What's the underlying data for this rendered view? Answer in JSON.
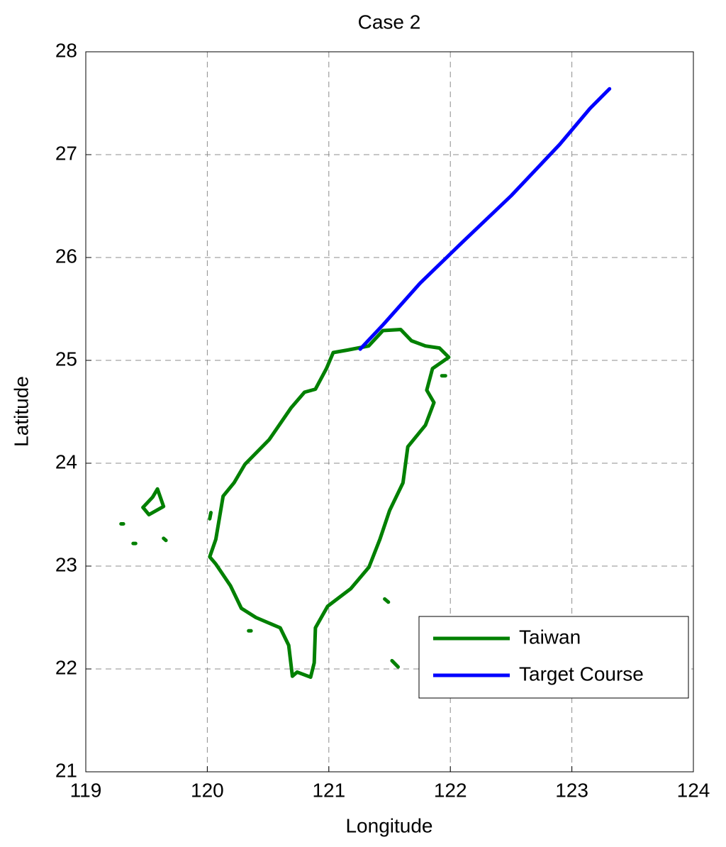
{
  "chart_data": {
    "type": "line",
    "title": "Case 2",
    "x_label": "Longitude",
    "y_label": "Latitude",
    "xlim": [
      119,
      124
    ],
    "xticks": [
      119,
      120,
      121,
      122,
      123,
      124
    ],
    "ylim": [
      21,
      28
    ],
    "yticks": [
      21,
      22,
      23,
      24,
      25,
      26,
      27,
      28
    ],
    "grid": true,
    "legend": "lower right",
    "series": [
      {
        "name": "Taiwan",
        "color": "#008000",
        "x": [
          121.036,
          121.153,
          121.328,
          121.445,
          121.591,
          121.68,
          121.795,
          121.911,
          121.987,
          121.853,
          121.806,
          121.865,
          121.795,
          121.65,
          121.61,
          121.5,
          121.42,
          121.33,
          121.18,
          120.99,
          120.89,
          120.88,
          120.85,
          120.74,
          120.7,
          120.67,
          120.6,
          120.4,
          120.28,
          120.19,
          120.07,
          120.02,
          120.07,
          120.13,
          120.22,
          120.31,
          120.51,
          120.69,
          120.8,
          120.89,
          120.98,
          121.036,
          null,
          119.47,
          119.55,
          119.59,
          119.64,
          119.52,
          119.47,
          null,
          119.29,
          119.31,
          null,
          119.39,
          119.41,
          null,
          119.64,
          119.66,
          null,
          120.02,
          120.03,
          null,
          120.34,
          120.36,
          null,
          121.46,
          121.49,
          null,
          121.52,
          121.57,
          null,
          121.93,
          121.96
        ],
        "values": [
          25.076,
          25.1,
          25.14,
          25.29,
          25.3,
          25.19,
          25.14,
          25.12,
          25.03,
          24.92,
          24.71,
          24.59,
          24.37,
          24.16,
          23.81,
          23.54,
          23.26,
          22.99,
          22.78,
          22.61,
          22.4,
          22.06,
          21.92,
          21.97,
          21.93,
          22.23,
          22.4,
          22.5,
          22.59,
          22.81,
          23.02,
          23.09,
          23.26,
          23.68,
          23.81,
          23.99,
          24.23,
          24.54,
          24.69,
          24.72,
          24.92,
          25.076,
          null,
          23.57,
          23.67,
          23.75,
          23.58,
          23.5,
          23.57,
          null,
          23.41,
          23.41,
          null,
          23.22,
          23.22,
          null,
          23.27,
          23.25,
          null,
          23.46,
          23.52,
          null,
          22.37,
          22.37,
          null,
          22.68,
          22.65,
          null,
          22.08,
          22.02,
          null,
          24.85,
          24.85
        ]
      },
      {
        "name": "Target Course",
        "color": "#0000ff",
        "x": [
          121.258,
          121.45,
          121.75,
          122.1,
          122.5,
          122.9,
          123.15,
          123.31
        ],
        "values": [
          25.11,
          25.35,
          25.75,
          26.15,
          26.6,
          27.1,
          27.45,
          27.64
        ]
      }
    ]
  }
}
